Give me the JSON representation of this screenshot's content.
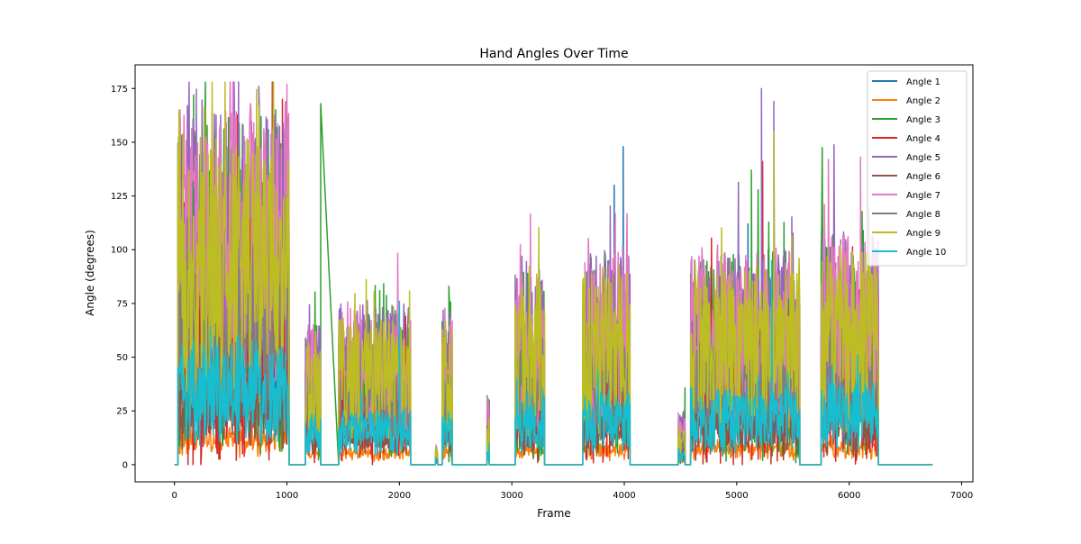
{
  "chart_data": {
    "type": "line",
    "title": "Hand Angles Over Time",
    "xlabel": "Frame",
    "ylabel": "Angle (degrees)",
    "xlim": [
      -350,
      7100
    ],
    "ylim": [
      -8,
      186
    ],
    "xticks": [
      0,
      1000,
      2000,
      3000,
      4000,
      5000,
      6000,
      7000
    ],
    "yticks": [
      0,
      25,
      50,
      75,
      100,
      125,
      150,
      175
    ],
    "grid": false,
    "legend_position": "top-right",
    "segments": [
      {
        "start": 0,
        "end": 30,
        "active": false
      },
      {
        "start": 30,
        "end": 1020,
        "active": true,
        "scale": 1.0
      },
      {
        "start": 1020,
        "end": 1165,
        "active": false
      },
      {
        "start": 1165,
        "end": 1300,
        "active": true,
        "scale": 0.4
      },
      {
        "start": 1300,
        "end": 1460,
        "active": false
      },
      {
        "start": 1460,
        "end": 2100,
        "active": true,
        "scale": 0.45
      },
      {
        "start": 2100,
        "end": 2320,
        "active": false
      },
      {
        "start": 2320,
        "end": 2340,
        "active": true,
        "scale": 0.06
      },
      {
        "start": 2340,
        "end": 2380,
        "active": false
      },
      {
        "start": 2380,
        "end": 2470,
        "active": true,
        "scale": 0.45
      },
      {
        "start": 2470,
        "end": 2780,
        "active": false
      },
      {
        "start": 2780,
        "end": 2800,
        "active": true,
        "scale": 0.2
      },
      {
        "start": 2800,
        "end": 3030,
        "active": false
      },
      {
        "start": 3030,
        "end": 3290,
        "active": true,
        "scale": 0.55
      },
      {
        "start": 3290,
        "end": 3630,
        "active": false
      },
      {
        "start": 3630,
        "end": 4050,
        "active": true,
        "scale": 0.6
      },
      {
        "start": 4050,
        "end": 4480,
        "active": false
      },
      {
        "start": 4480,
        "end": 4540,
        "active": true,
        "scale": 0.15
      },
      {
        "start": 4540,
        "end": 4590,
        "active": false
      },
      {
        "start": 4590,
        "end": 5560,
        "active": true,
        "scale": 0.6
      },
      {
        "start": 5560,
        "end": 5750,
        "active": false
      },
      {
        "start": 5750,
        "end": 6260,
        "active": true,
        "scale": 0.65
      },
      {
        "start": 6260,
        "end": 6740,
        "active": false
      }
    ],
    "series": [
      {
        "name": "Angle 1",
        "color": "#1f77b4",
        "base": 40,
        "amp": 30,
        "peaks": [
          [
            3910,
            130
          ],
          [
            3990,
            148
          ],
          [
            5100,
            112
          ],
          [
            5280,
            100
          ]
        ]
      },
      {
        "name": "Angle 2",
        "color": "#ff7f0e",
        "base": 8,
        "amp": 6,
        "peaks": []
      },
      {
        "name": "Angle 3",
        "color": "#2ca02c",
        "base": 80,
        "amp": 90,
        "peaks": [
          [
            170,
            172
          ],
          [
            1300,
            168
          ],
          [
            2440,
            83
          ],
          [
            5130,
            137
          ]
        ]
      },
      {
        "name": "Angle 4",
        "color": "#d62728",
        "base": 60,
        "amp": 70,
        "peaks": [
          [
            960,
            170
          ],
          [
            5230,
            141
          ]
        ]
      },
      {
        "name": "Angle 5",
        "color": "#9467bd",
        "base": 100,
        "amp": 70,
        "peaks": [
          [
            750,
            176
          ],
          [
            5220,
            175
          ],
          [
            5330,
            169
          ],
          [
            3090,
            97
          ]
        ]
      },
      {
        "name": "Angle 6",
        "color": "#8c564b",
        "base": 25,
        "amp": 20,
        "peaks": []
      },
      {
        "name": "Angle 7",
        "color": "#e377c2",
        "base": 95,
        "amp": 75,
        "peaks": [
          [
            1000,
            177
          ],
          [
            6100,
            143
          ],
          [
            5780,
            121
          ]
        ]
      },
      {
        "name": "Angle 8",
        "color": "#7f7f7f",
        "base": 55,
        "amp": 40,
        "peaks": []
      },
      {
        "name": "Angle 9",
        "color": "#bcbd22",
        "base": 85,
        "amp": 70,
        "peaks": [
          [
            40,
            165
          ],
          [
            5330,
            155
          ]
        ]
      },
      {
        "name": "Angle 10",
        "color": "#17becf",
        "base": 30,
        "amp": 25,
        "peaks": [
          [
            2000,
            76
          ],
          [
            5310,
            95
          ]
        ]
      }
    ]
  }
}
